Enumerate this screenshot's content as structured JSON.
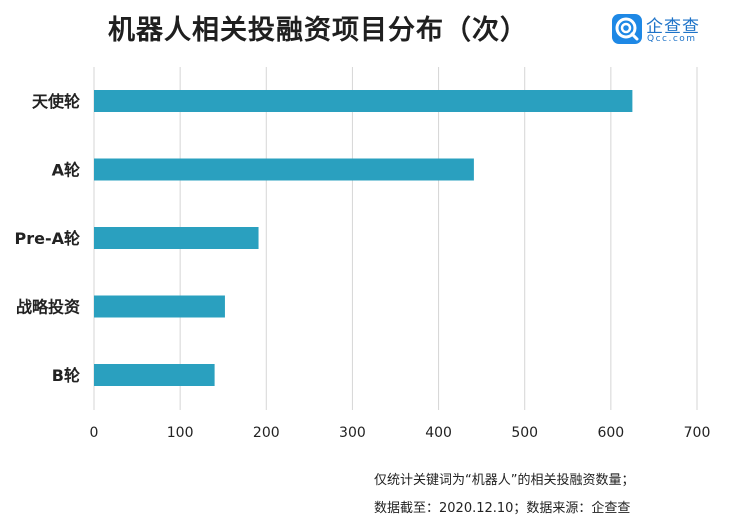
{
  "title": "机器人相关投融资项目分布（次）",
  "logo": {
    "name": "企查查",
    "domain": "Qcc.com"
  },
  "chart_data": {
    "type": "bar",
    "orientation": "horizontal",
    "categories": [
      "天使轮",
      "A轮",
      "Pre-A轮",
      "战略投资",
      "B轮"
    ],
    "values": [
      625,
      441,
      191,
      152,
      140
    ],
    "xlim": [
      0,
      700
    ],
    "xticks": [
      0,
      100,
      200,
      300,
      400,
      500,
      600,
      700
    ],
    "grid": "vertical",
    "bar_color": "#2aa0bf"
  },
  "footnote": {
    "line1": "仅统计关键词为“机器人”的相关投融资数量；",
    "line2": "数据截至：2020.12.10；数据来源：企查查"
  }
}
